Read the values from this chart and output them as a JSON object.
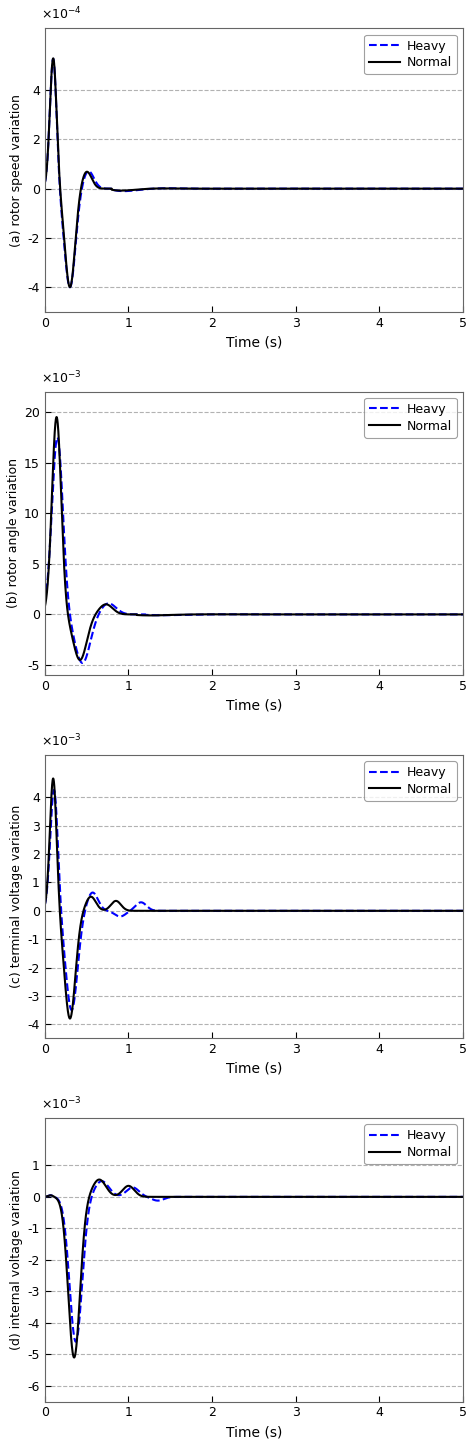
{
  "subplot_a": {
    "ylabel": "(a) rotor speed variation",
    "xlabel": "Time (s)",
    "scale_label": "x 10-4",
    "ylim": [
      -0.0005,
      0.00065
    ],
    "yticks": [
      -0.0004,
      -0.0002,
      0,
      0.0002,
      0.0004
    ],
    "ytick_labels": [
      "-4",
      "-2",
      "0",
      "2",
      "4"
    ],
    "xlim": [
      0,
      5
    ],
    "xticks": [
      0,
      1,
      2,
      3,
      4,
      5
    ]
  },
  "subplot_b": {
    "ylabel": "(b) rotor angle variation",
    "xlabel": "Time (s)",
    "scale_label": "x 10-3",
    "ylim": [
      -0.006,
      0.022
    ],
    "yticks": [
      -0.005,
      0,
      0.005,
      0.01,
      0.015,
      0.02
    ],
    "ytick_labels": [
      "-5",
      "0",
      "5",
      "10",
      "15",
      "20"
    ],
    "xlim": [
      0,
      5
    ],
    "xticks": [
      0,
      1,
      2,
      3,
      4,
      5
    ]
  },
  "subplot_c": {
    "ylabel": "(c) terminal voltage variation",
    "xlabel": "Time (s)",
    "scale_label": "x 10-3",
    "ylim": [
      -0.0045,
      0.0055
    ],
    "yticks": [
      -0.004,
      -0.003,
      -0.002,
      -0.001,
      0,
      0.001,
      0.002,
      0.003,
      0.004
    ],
    "ytick_labels": [
      "-4",
      "-3",
      "-2",
      "-1",
      "0",
      "1",
      "2",
      "3",
      "4"
    ],
    "xlim": [
      0,
      5
    ],
    "xticks": [
      0,
      1,
      2,
      3,
      4,
      5
    ]
  },
  "subplot_d": {
    "ylabel": "(d) internal voltage variation",
    "xlabel": "Time (s)",
    "scale_label": "x 10-3",
    "ylim": [
      -0.0065,
      0.0025
    ],
    "yticks": [
      -0.006,
      -0.005,
      -0.004,
      -0.003,
      -0.002,
      -0.001,
      0,
      0.001
    ],
    "ytick_labels": [
      "-6",
      "-5",
      "-4",
      "-3",
      "-2",
      "-1",
      "0",
      "1"
    ],
    "xlim": [
      0,
      5
    ],
    "xticks": [
      0,
      1,
      2,
      3,
      4,
      5
    ]
  },
  "colors": {
    "heavy": "#0000ff",
    "normal": "#000000"
  },
  "background": "#ffffff",
  "grid_color": "#aaaaaa",
  "figsize": [
    4.74,
    14.46
  ],
  "dpi": 100
}
